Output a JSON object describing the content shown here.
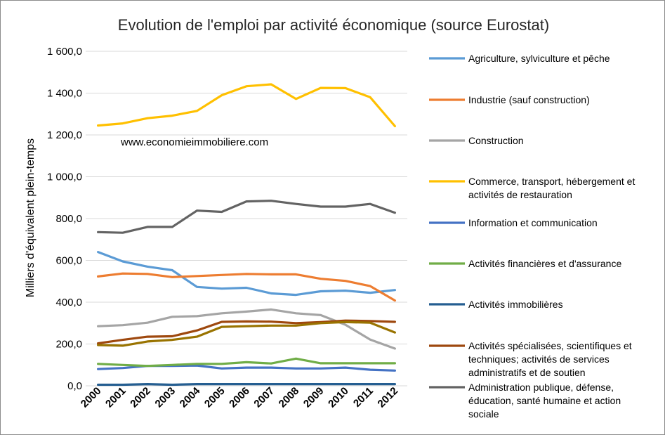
{
  "chart_data": {
    "type": "line",
    "title": "Evolution de l'emploi par activité économique (source Eurostat)",
    "xlabel": "",
    "ylabel": "Milliers d'équivalent plein-temps",
    "ylim": [
      0,
      1600
    ],
    "y_ticks": [
      "0,0",
      "200,0",
      "400,0",
      "600,0",
      "800,0",
      "1 000,0",
      "1 200,0",
      "1 400,0",
      "1 600,0"
    ],
    "x": [
      "2000",
      "2001",
      "2002",
      "2003",
      "2004",
      "2005",
      "2006",
      "2007",
      "2008",
      "2009",
      "2010",
      "2011",
      "2012"
    ],
    "grid": true,
    "legend_position": "right",
    "annotation": "www.economieimmobiliere.com",
    "series": [
      {
        "name": "Agriculture, sylviculture et pêche",
        "color": "#5b9bd5",
        "values": [
          640,
          595,
          570,
          553,
          473,
          465,
          469,
          442,
          435,
          452,
          455,
          445,
          458
        ]
      },
      {
        "name": "Industrie (sauf construction)",
        "color": "#ed7d31",
        "values": [
          523,
          537,
          535,
          520,
          525,
          530,
          535,
          533,
          533,
          512,
          502,
          477,
          408
        ]
      },
      {
        "name": "Construction",
        "color": "#a5a5a5",
        "values": [
          285,
          290,
          302,
          330,
          333,
          347,
          355,
          365,
          347,
          338,
          292,
          221,
          178
        ]
      },
      {
        "name": "Commerce, transport, hébergement et activités de restauration",
        "color": "#ffc000",
        "values": [
          1245,
          1255,
          1280,
          1292,
          1315,
          1390,
          1433,
          1442,
          1372,
          1425,
          1424,
          1380,
          1242
        ]
      },
      {
        "name": "Information et communication",
        "color": "#4472c4",
        "values": [
          80,
          85,
          95,
          95,
          97,
          83,
          87,
          87,
          83,
          83,
          87,
          77,
          73
        ]
      },
      {
        "name": "Activités financières et d'assurance",
        "color": "#70ad47",
        "values": [
          105,
          100,
          95,
          100,
          105,
          105,
          113,
          107,
          130,
          108,
          108,
          108,
          108
        ]
      },
      {
        "name": "Activités immobilières",
        "color": "#255e91",
        "values": [
          5,
          5,
          8,
          5,
          8,
          8,
          8,
          8,
          8,
          8,
          8,
          8,
          8
        ]
      },
      {
        "name": "Activités spécialisées, scientifiques et techniques; activités de services administratifs et de soutien",
        "color": "#9e480e",
        "values": [
          203,
          220,
          235,
          237,
          265,
          306,
          308,
          307,
          300,
          305,
          312,
          310,
          306
        ]
      },
      {
        "name": "Administration publique, défense, éducation, santé humaine et action sociale",
        "color": "#636363",
        "values": [
          735,
          732,
          760,
          760,
          838,
          832,
          882,
          885,
          870,
          857,
          857,
          870,
          828
        ]
      },
      {
        "name": "",
        "color": "#997300",
        "values": [
          195,
          192,
          212,
          220,
          235,
          282,
          285,
          288,
          288,
          300,
          305,
          302,
          255
        ]
      }
    ]
  }
}
